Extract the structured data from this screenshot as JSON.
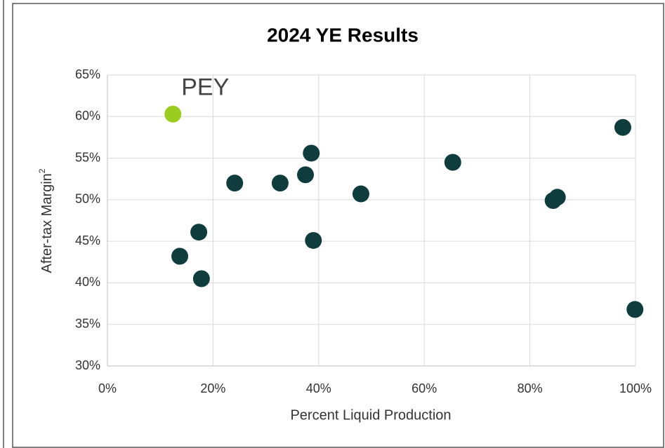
{
  "chart_data": {
    "type": "scatter",
    "title": "2024 YE Results",
    "xlabel": "Percent Liquid Production",
    "ylabel": "After-tax Margin",
    "ylabel_sup": "2",
    "xlim": [
      0,
      100
    ],
    "ylim": [
      30,
      65
    ],
    "xticks": [
      {
        "value": 0,
        "label": "0%"
      },
      {
        "value": 20,
        "label": "20%"
      },
      {
        "value": 40,
        "label": "40%"
      },
      {
        "value": 60,
        "label": "60%"
      },
      {
        "value": 80,
        "label": "80%"
      },
      {
        "value": 100,
        "label": "100%"
      }
    ],
    "yticks": [
      {
        "value": 30,
        "label": "30%"
      },
      {
        "value": 35,
        "label": "35%"
      },
      {
        "value": 40,
        "label": "40%"
      },
      {
        "value": 45,
        "label": "45%"
      },
      {
        "value": 50,
        "label": "50%"
      },
      {
        "value": 55,
        "label": "55%"
      },
      {
        "value": 60,
        "label": "60%"
      },
      {
        "value": 65,
        "label": "65%"
      }
    ],
    "grid": true,
    "series": [
      {
        "name": "PEY",
        "color": "#9acd1f",
        "x": [
          12.4
        ],
        "values": [
          60.3
        ]
      },
      {
        "color": "#0f3d3e",
        "x": [
          13.7,
          17.3,
          17.8,
          24.1,
          32.7,
          37.5,
          38.6,
          39.0,
          48.0,
          65.4,
          84.4,
          85.2,
          97.6,
          99.9
        ],
        "values": [
          43.2,
          46.1,
          40.5,
          52.0,
          52.0,
          53.0,
          55.6,
          45.1,
          50.7,
          54.5,
          49.9,
          50.3,
          58.7,
          36.8
        ]
      }
    ]
  }
}
